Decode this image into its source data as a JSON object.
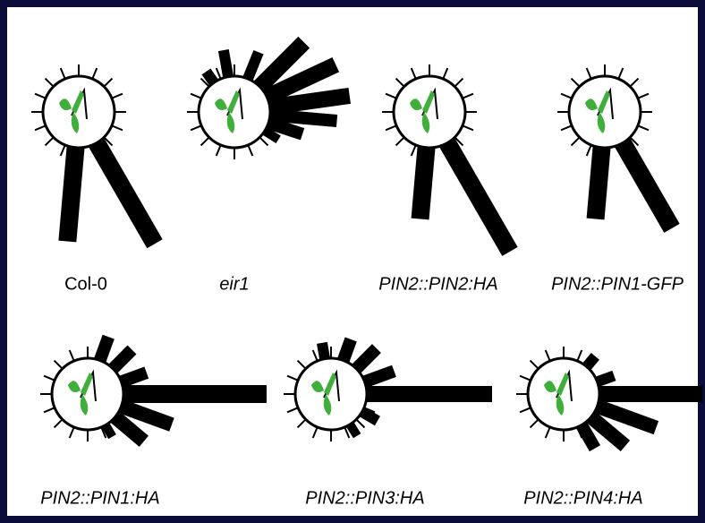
{
  "panels": [
    {
      "label": "Col-0"
    },
    {
      "label": "eir1"
    },
    {
      "label": "PIN2::PIN2:HA"
    },
    {
      "label": "PIN2::PIN1-GFP"
    },
    {
      "label": "PIN2::PIN1:HA"
    },
    {
      "label": "PIN2::PIN3:HA"
    },
    {
      "label": "PIN2::PIN4:HA"
    }
  ]
}
